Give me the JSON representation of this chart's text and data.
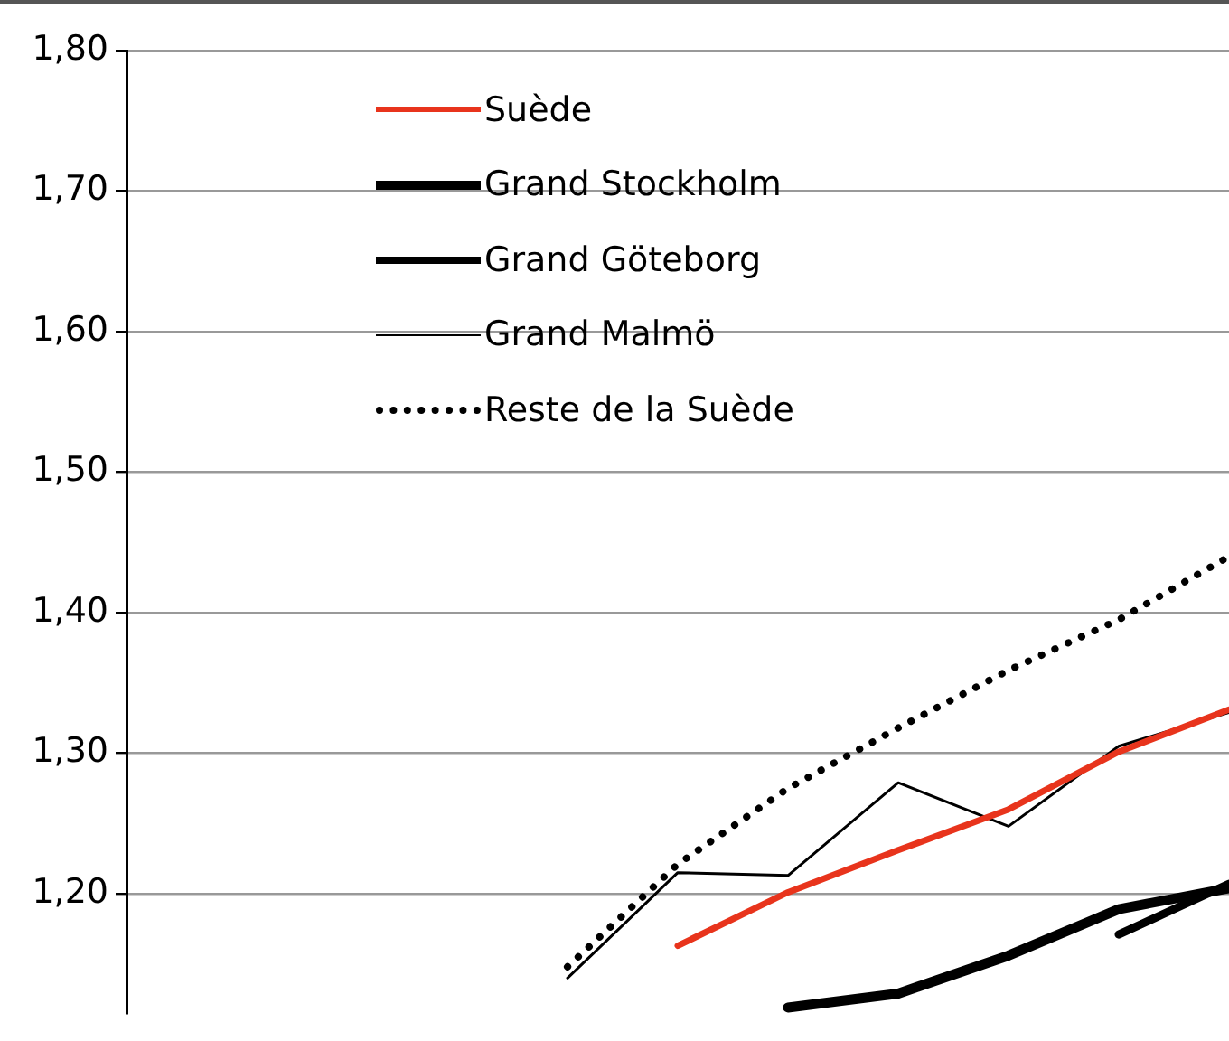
{
  "chart_data": {
    "type": "line",
    "categories": [
      null,
      null,
      null,
      null,
      null,
      null,
      null,
      null,
      null,
      null,
      null
    ],
    "series": [
      {
        "name": "Suède",
        "color": "#e8341c",
        "line_style": "solid",
        "values": [
          null,
          null,
          null,
          null,
          null,
          1.163,
          1.201,
          1.231,
          1.26,
          1.301,
          1.331
        ]
      },
      {
        "name": "Grand Stockholm",
        "color": "#000000",
        "line_style": "solid",
        "values": [
          null,
          null,
          null,
          null,
          null,
          null,
          1.119,
          1.129,
          1.156,
          1.189,
          1.204
        ]
      },
      {
        "name": "Grand Göteborg",
        "color": "#000000",
        "line_style": "solid",
        "values": [
          null,
          null,
          null,
          null,
          null,
          null,
          null,
          null,
          null,
          1.171,
          1.207
        ]
      },
      {
        "name": "Grand Malmö",
        "color": "#000000",
        "line_style": "solid",
        "values": [
          null,
          null,
          null,
          null,
          1.14,
          1.215,
          1.213,
          1.279,
          1.248,
          1.305,
          1.329
        ]
      },
      {
        "name": "Reste de la Suède",
        "color": "#000000",
        "line_style": "dotted",
        "values": [
          null,
          null,
          null,
          null,
          1.148,
          1.221,
          1.275,
          1.318,
          1.359,
          1.395,
          1.44
        ]
      }
    ],
    "ylim": [
      1.115,
      1.8
    ],
    "yticks": [
      {
        "value": 1.2,
        "label": "1,20"
      },
      {
        "value": 1.3,
        "label": "1,30"
      },
      {
        "value": 1.4,
        "label": "1,40"
      },
      {
        "value": 1.5,
        "label": "1,50"
      },
      {
        "value": 1.6,
        "label": "1,60"
      },
      {
        "value": 1.7,
        "label": "1,70"
      },
      {
        "value": 1.8,
        "label": "1,80"
      }
    ],
    "grid": "y",
    "legend": "top left",
    "tick_labels": "y",
    "marker": "none"
  }
}
